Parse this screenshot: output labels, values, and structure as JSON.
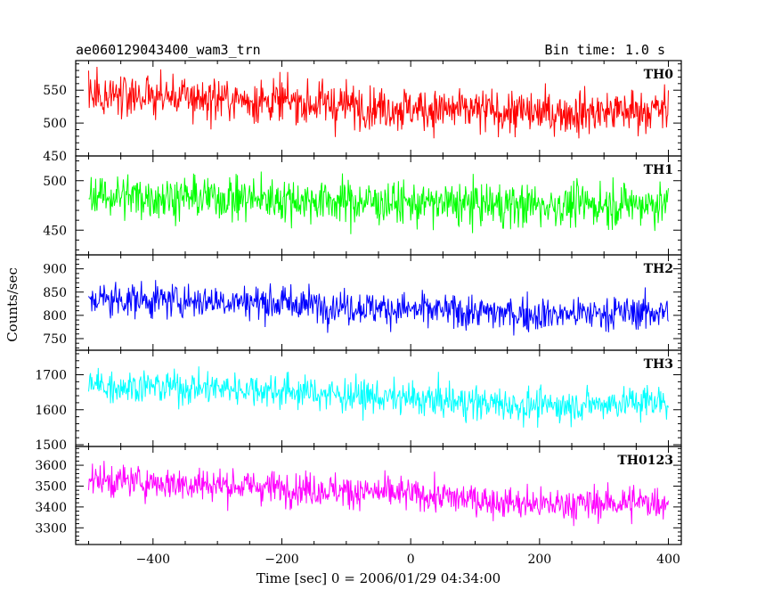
{
  "header": {
    "title": "ae060129043400_wam3_trn",
    "bin_time": "Bin time: 1.0 s"
  },
  "chart_data": {
    "type": "line",
    "xlabel": "Time [sec] 0 = 2006/01/29 04:34:00",
    "ylabel": "Counts/sec",
    "xlim": [
      -520,
      420
    ],
    "xticks": [
      -400,
      -200,
      0,
      200,
      400
    ],
    "x_range": [
      -500,
      400
    ],
    "bin_time_s": 1.0,
    "panels": [
      {
        "label": "TH0",
        "color": "#ff0000",
        "ylim": [
          450,
          595
        ],
        "yticks": [
          450,
          500,
          550
        ],
        "trend": [
          [
            -500,
            545
          ],
          [
            -250,
            535
          ],
          [
            0,
            522
          ],
          [
            200,
            515
          ],
          [
            400,
            520
          ]
        ],
        "noise": 38
      },
      {
        "label": "TH1",
        "color": "#00ff00",
        "ylim": [
          425,
          525
        ],
        "yticks": [
          450,
          500
        ],
        "trend": [
          [
            -500,
            485
          ],
          [
            -250,
            482
          ],
          [
            0,
            477
          ],
          [
            200,
            475
          ],
          [
            400,
            477
          ]
        ],
        "noise": 25
      },
      {
        "label": "TH2",
        "color": "#0000ff",
        "ylim": [
          725,
          930
        ],
        "yticks": [
          750,
          800,
          850,
          900
        ],
        "trend": [
          [
            -500,
            835
          ],
          [
            -250,
            830
          ],
          [
            0,
            812
          ],
          [
            200,
            802
          ],
          [
            400,
            808
          ]
        ],
        "noise": 42
      },
      {
        "label": "TH3",
        "color": "#00ffff",
        "ylim": [
          1495,
          1770
        ],
        "yticks": [
          1500,
          1600,
          1700
        ],
        "trend": [
          [
            -500,
            1670
          ],
          [
            -250,
            1660
          ],
          [
            0,
            1630
          ],
          [
            200,
            1610
          ],
          [
            400,
            1625
          ]
        ],
        "noise": 55
      },
      {
        "label": "TH0123",
        "color": "#ff00ff",
        "ylim": [
          3220,
          3690
        ],
        "yticks": [
          3300,
          3400,
          3500,
          3600
        ],
        "trend": [
          [
            -500,
            3530
          ],
          [
            -250,
            3500
          ],
          [
            0,
            3460
          ],
          [
            200,
            3410
          ],
          [
            400,
            3425
          ]
        ],
        "noise": 90
      }
    ]
  }
}
